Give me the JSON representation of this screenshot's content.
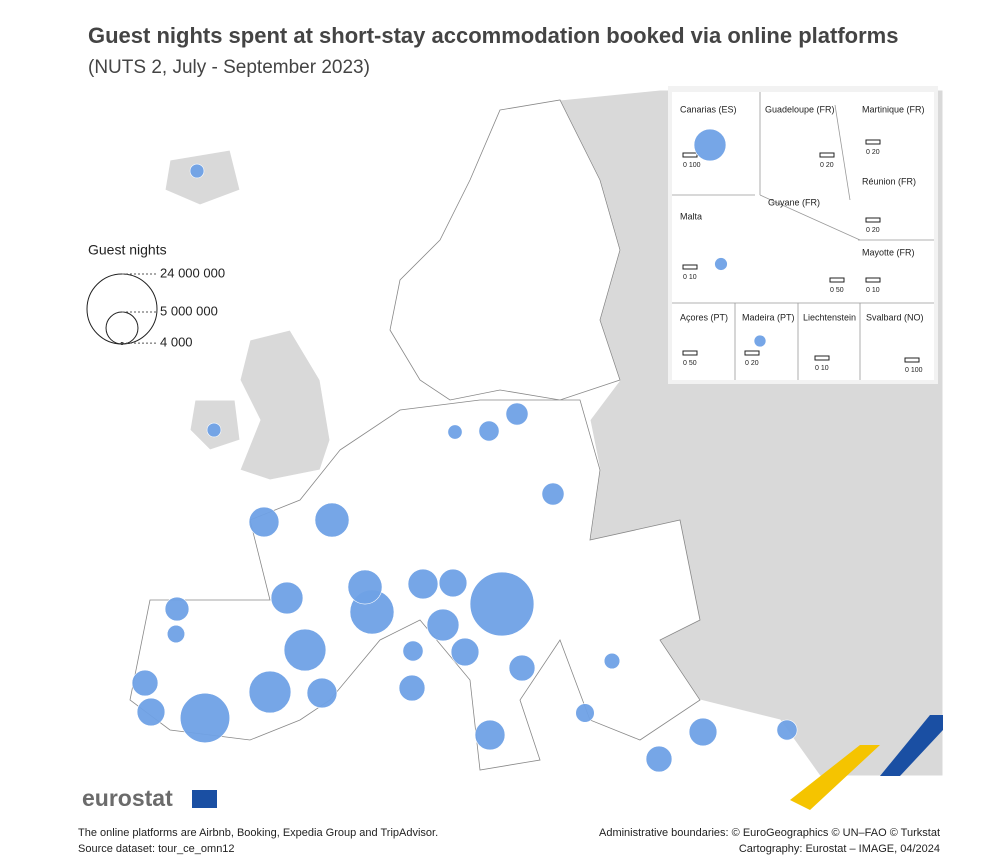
{
  "header": {
    "title": "Guest nights spent at short-stay accommodation booked via online platforms",
    "subtitle": "(NUTS 2, July - September 2023)"
  },
  "legend": {
    "title": "Guest nights",
    "sizes": [
      {
        "value": 24000000,
        "label": "24 000 000"
      },
      {
        "value": 5000000,
        "label": "5 000 000"
      },
      {
        "value": 4000,
        "label": "4 000"
      }
    ]
  },
  "insets": [
    {
      "name": "Canarias (ES)",
      "scale": "0   100"
    },
    {
      "name": "Guadeloupe (FR)",
      "scale": "0   20"
    },
    {
      "name": "Martinique (FR)",
      "scale": "0   20"
    },
    {
      "name": "Réunion (FR)",
      "scale": "0   20"
    },
    {
      "name": "Malta",
      "scale": "0   10"
    },
    {
      "name": "Guyane (FR)",
      "scale": "0 50"
    },
    {
      "name": "Mayotte (FR)",
      "scale": "0 10"
    },
    {
      "name": "Açores (PT)",
      "scale": "0   50"
    },
    {
      "name": "Madeira (PT)",
      "scale": "0   20"
    },
    {
      "name": "Liechtenstein",
      "scale": "0   10"
    },
    {
      "name": "Svalbard (NO)",
      "scale": "0 100"
    }
  ],
  "bubbles": [
    20000000,
    12000000,
    8600000,
    8600000,
    9500000,
    5700000,
    5000000,
    4400000,
    5700000,
    5000000,
    3800000,
    4400000,
    4400000,
    3300000,
    3300000,
    4400000,
    3800000,
    3300000,
    2800000,
    3800000,
    3300000,
    3800000,
    2000000,
    5000000,
    950000,
    2400000,
    2000000,
    2400000,
    950000,
    700000,
    1500000,
    1200000,
    1700000,
    2000000,
    1000000,
    800000
  ],
  "footer": {
    "brand": "eurostat",
    "note": "The online platforms are Airbnb, Booking, Expedia Group and TripAdvisor.",
    "source": "Source dataset: tour_ce_omn12",
    "boundaries": "Administrative boundaries: © EuroGeographics © UN–FAO © Turkstat",
    "cartography": "Cartography: Eurostat – IMAGE, 04/2024"
  }
}
